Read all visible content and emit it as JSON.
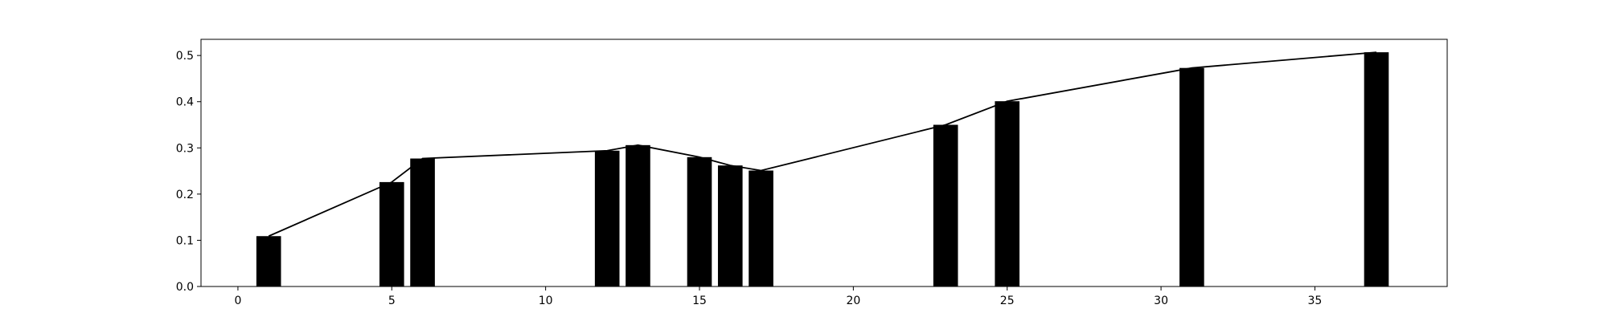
{
  "chart_data": {
    "type": "bar",
    "x": [
      1,
      5,
      6,
      12,
      13,
      15,
      16,
      17,
      23,
      25,
      31,
      37
    ],
    "values": [
      0.109,
      0.226,
      0.277,
      0.294,
      0.306,
      0.28,
      0.262,
      0.251,
      0.35,
      0.401,
      0.473,
      0.507
    ],
    "bar_width": 0.8,
    "line_overlay": true,
    "bar_color": "#000000",
    "line_color": "#000000",
    "xlim": [
      -1.2,
      39.3
    ],
    "ylim": [
      0,
      0.535
    ],
    "xticks": [
      0,
      5,
      10,
      15,
      20,
      25,
      30,
      35
    ],
    "xtick_labels": [
      "0",
      "5",
      "10",
      "15",
      "20",
      "25",
      "30",
      "35"
    ],
    "yticks": [
      0.0,
      0.1,
      0.2,
      0.3,
      0.4,
      0.5
    ],
    "ytick_labels": [
      "0.0",
      "0.1",
      "0.2",
      "0.3",
      "0.4",
      "0.5"
    ],
    "title": "",
    "xlabel": "",
    "ylabel": "",
    "grid": false
  }
}
